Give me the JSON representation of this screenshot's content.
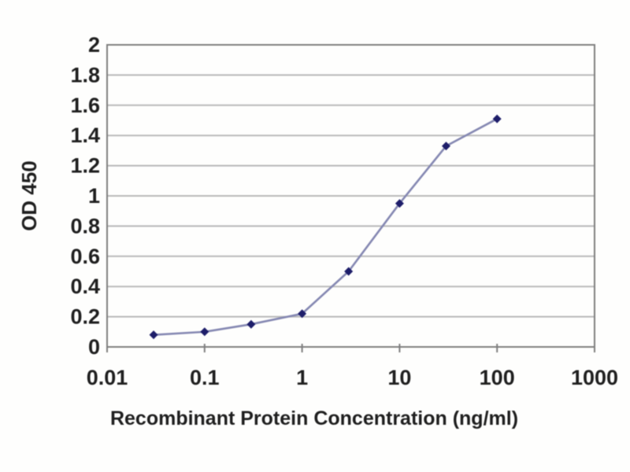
{
  "chart_data": {
    "type": "line",
    "x": [
      0.03,
      0.1,
      0.3,
      1,
      3,
      10,
      30,
      100
    ],
    "y": [
      0.08,
      0.1,
      0.15,
      0.22,
      0.5,
      0.95,
      1.33,
      1.51
    ],
    "xlabel": "Recombinant Protein Concentration (ng/ml)",
    "ylabel": "OD 450",
    "title": "",
    "x_scale": "log",
    "xlim": [
      0.01,
      1000
    ],
    "ylim": [
      0,
      2
    ],
    "x_ticks": [
      "0.01",
      "0.1",
      "1",
      "10",
      "100",
      "1000"
    ],
    "y_ticks": [
      "0",
      "0.2",
      "0.4",
      "0.6",
      "0.8",
      "1",
      "1.2",
      "1.4",
      "1.6",
      "1.8",
      "2"
    ],
    "grid": "horizontal",
    "legend": "none",
    "marker": "diamond",
    "colors": {
      "marker": "#1e1e6a",
      "line": "#8588b2",
      "grid": "#b9b9b9",
      "axis": "#7f7f7f",
      "text": "#1f1f1f",
      "background": "#ffffff"
    }
  }
}
